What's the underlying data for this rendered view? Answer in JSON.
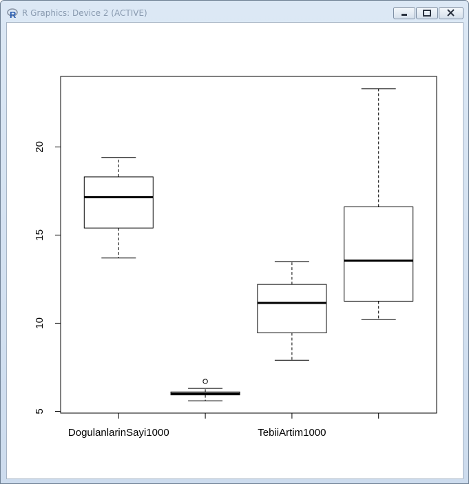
{
  "window": {
    "title": "R Graphics: Device 2 (ACTIVE)",
    "app_icon": "r-logo-icon",
    "buttons": [
      "minimize-icon",
      "maximize-icon",
      "close-icon"
    ]
  },
  "chart_data": {
    "type": "boxplot",
    "title": "",
    "xlabel": "",
    "ylabel": "",
    "ylim": [
      4.9,
      24.0
    ],
    "y_ticks": [
      5,
      10,
      15,
      20
    ],
    "categories": [
      "DogulanlarinSayi1000",
      "",
      "TebiiArtim1000",
      ""
    ],
    "boxes": [
      {
        "whisker_low": 13.7,
        "q1": 15.4,
        "median": 17.15,
        "q3": 18.3,
        "whisker_high": 19.4,
        "outliers": []
      },
      {
        "whisker_low": 5.6,
        "q1": 5.93,
        "median": 6.0,
        "q3": 6.1,
        "whisker_high": 6.3,
        "outliers": [
          6.7
        ]
      },
      {
        "whisker_low": 7.9,
        "q1": 9.45,
        "median": 11.15,
        "q3": 12.2,
        "whisker_high": 13.5,
        "outliers": []
      },
      {
        "whisker_low": 10.2,
        "q1": 11.25,
        "median": 13.55,
        "q3": 16.6,
        "whisker_high": 23.3,
        "outliers": []
      }
    ],
    "box_fill": "#ffffff",
    "line_color": "#000000",
    "grid": false
  }
}
